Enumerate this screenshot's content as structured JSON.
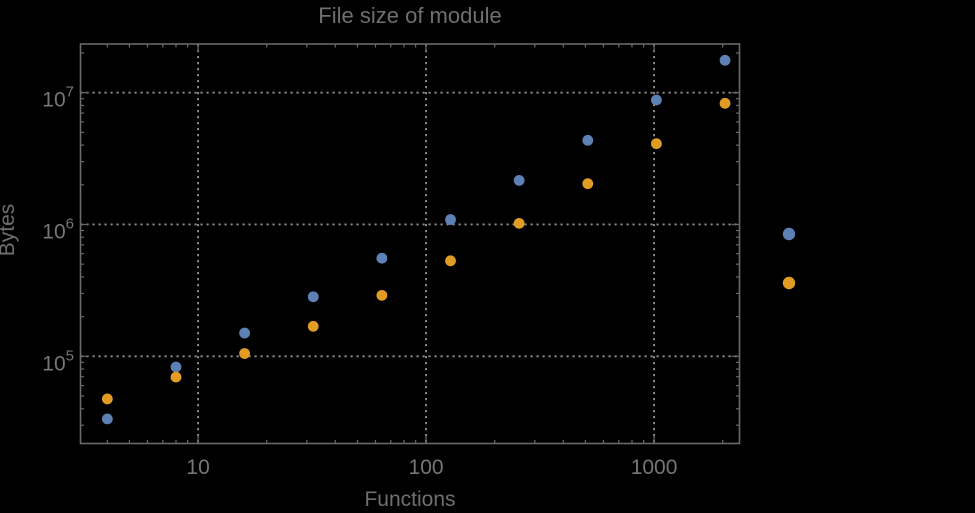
{
  "background": "#000000",
  "chart_data": {
    "type": "scatter",
    "title": "File size of module",
    "xlabel": "Functions",
    "ylabel": "Bytes",
    "x_scale": "log",
    "y_scale": "log",
    "xlim": [
      3.05,
      2370
    ],
    "ylim": [
      21800,
      23400000
    ],
    "grid": "major-dotted",
    "x_major_ticks": [
      10,
      100,
      1000
    ],
    "x_tick_labels": [
      "10",
      "100",
      "1000"
    ],
    "y_major_ticks": [
      100000,
      1000000,
      10000000
    ],
    "y_tick_labels": [
      {
        "base": "10",
        "exponent": "5"
      },
      {
        "base": "10",
        "exponent": "6"
      },
      {
        "base": "10",
        "exponent": "7"
      }
    ],
    "series": [
      {
        "name": "series-1",
        "marker": "disk",
        "color": "#5e81b5",
        "x": [
          4,
          8,
          16,
          32,
          64,
          128,
          256,
          512,
          1024,
          2048
        ],
        "y": [
          33500,
          83000,
          150000,
          283000,
          555000,
          1090000,
          2160000,
          4350000,
          8800000,
          17600000
        ]
      },
      {
        "name": "series-2",
        "marker": "disk",
        "color": "#e19c24",
        "x": [
          4,
          8,
          16,
          32,
          64,
          128,
          256,
          512,
          1024,
          2048
        ],
        "y": [
          47500,
          69500,
          105000,
          169000,
          290000,
          530000,
          1020000,
          2040000,
          4100000,
          8300000
        ]
      }
    ],
    "legend": {
      "position": "right-of-frame",
      "entries": [
        {
          "color": "#5e81b5",
          "label": ""
        },
        {
          "color": "#e19c24",
          "label": ""
        }
      ]
    },
    "colors": {
      "frame": "#6a6a6a",
      "grid": "#8c8c8c",
      "title_text": "#6f6f6f",
      "axis_label_text": "#6f6f6f",
      "tick_label_text": "#767676"
    }
  }
}
